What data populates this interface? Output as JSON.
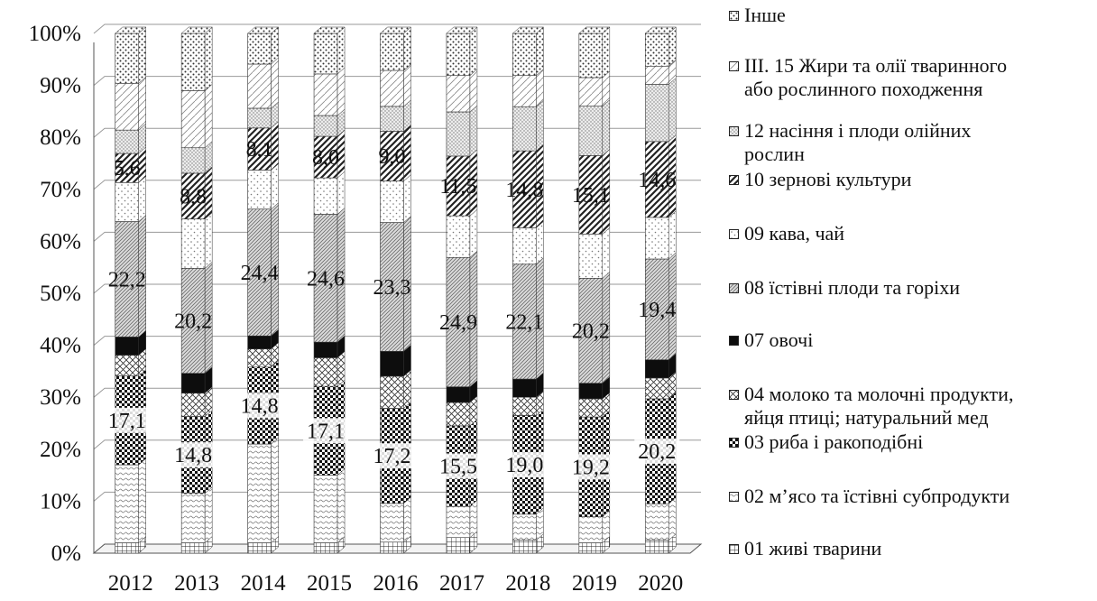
{
  "chart_data": {
    "type": "bar",
    "stacked": "percent",
    "categories": [
      "2012",
      "2013",
      "2014",
      "2015",
      "2016",
      "2017",
      "2018",
      "2019",
      "2020"
    ],
    "y_ticks": [
      "0%",
      "10%",
      "20%",
      "30%",
      "40%",
      "50%",
      "60%",
      "70%",
      "80%",
      "90%",
      "100%"
    ],
    "ylim": [
      0,
      100
    ],
    "grid": true,
    "legend_position": "right",
    "series": [
      {
        "name": "01 живі тварини",
        "pattern": "grid",
        "values": [
          2.0,
          2.0,
          2.0,
          2.0,
          2.0,
          3.0,
          2.5,
          2.0,
          2.5
        ]
      },
      {
        "name": "02 м’ясо та їстівні субпродукти",
        "pattern": "dots-light",
        "values": [
          15.0,
          9.5,
          19.0,
          13.0,
          7.0,
          6.0,
          5.0,
          5.0,
          7.0
        ]
      },
      {
        "name": "03 риба і ракоподібні",
        "pattern": "checker",
        "values": [
          17.1,
          14.8,
          14.8,
          17.1,
          17.2,
          15.5,
          19.0,
          19.2,
          20.2
        ]
      },
      {
        "name": "04 молоко та молочні продукти, яйця птиці; натуральний мед",
        "pattern": "crosshatch",
        "values": [
          4.0,
          4.5,
          3.5,
          5.5,
          5.8,
          4.5,
          3.5,
          3.5,
          4.0
        ]
      },
      {
        "name": "07 овочі",
        "pattern": "solid-black",
        "values": [
          3.5,
          3.8,
          2.5,
          3.0,
          4.5,
          3.0,
          3.5,
          3.0,
          3.5
        ]
      },
      {
        "name": "08 їстівні плоди та горіхи",
        "pattern": "diagonal-fine",
        "values": [
          22.2,
          20.2,
          24.4,
          24.6,
          23.3,
          24.9,
          22.1,
          20.2,
          19.4
        ]
      },
      {
        "name": "09 кава, чай",
        "pattern": "dots-sparse",
        "values": [
          7.5,
          9.5,
          7.5,
          7.0,
          7.5,
          8.0,
          7.0,
          8.5,
          8.0
        ]
      },
      {
        "name": "10 зернові культури",
        "pattern": "diagonal-bold",
        "values": [
          5.6,
          8.8,
          8.1,
          8.0,
          9.0,
          11.5,
          14.8,
          15.1,
          14.6
        ]
      },
      {
        "name": "12 насіння і плоди олійних рослин",
        "pattern": "stipple",
        "values": [
          4.5,
          4.9,
          3.8,
          4.0,
          4.5,
          8.5,
          8.5,
          9.5,
          11.0
        ]
      },
      {
        "name": "III. 15 Жири та олії тваринного або рослинного походження",
        "pattern": "diagonal-sparse",
        "values": [
          9.0,
          11.0,
          8.5,
          8.0,
          6.5,
          7.0,
          6.0,
          5.5,
          3.5
        ]
      },
      {
        "name": "Інше",
        "pattern": "dots-heavy",
        "values": [
          9.6,
          11.0,
          5.9,
          7.8,
          6.7,
          8.1,
          8.1,
          8.5,
          6.3
        ]
      }
    ],
    "data_labels": [
      {
        "series": 2,
        "values": [
          "17,1",
          "14,8",
          "14,8",
          "17,1",
          "17,2",
          "15,5",
          "19,0",
          "19,2",
          "20,2"
        ]
      },
      {
        "series": 5,
        "values": [
          "22,2",
          "20,2",
          "24,4",
          "24,6",
          "23,3",
          "24,9",
          "22,1",
          "20,2",
          "19,4"
        ]
      },
      {
        "series": 7,
        "values": [
          "5,6",
          "8,8",
          "8,1",
          "8,0",
          "9,0",
          "11,5",
          "14,8",
          "15,1",
          "14,6"
        ]
      }
    ]
  },
  "legend": {
    "items": [
      {
        "label": "Інше"
      },
      {
        "label": "III. 15 Жири та олії тваринного\nабо рослинного походження"
      },
      {
        "label": "12 насіння і плоди олійних\nрослин"
      },
      {
        "label": "10 зернові культури"
      },
      {
        "label": "09 кава, чай"
      },
      {
        "label": "08 їстівні плоди та горіхи"
      },
      {
        "label": "07 овочі"
      },
      {
        "label": "04 молоко та молочні продукти,\nяйця птиці; натуральний мед"
      },
      {
        "label": "03 риба і ракоподібні"
      },
      {
        "label": "02 м’ясо та їстівні субпродукти"
      },
      {
        "label": "01 живі тварини"
      }
    ]
  }
}
